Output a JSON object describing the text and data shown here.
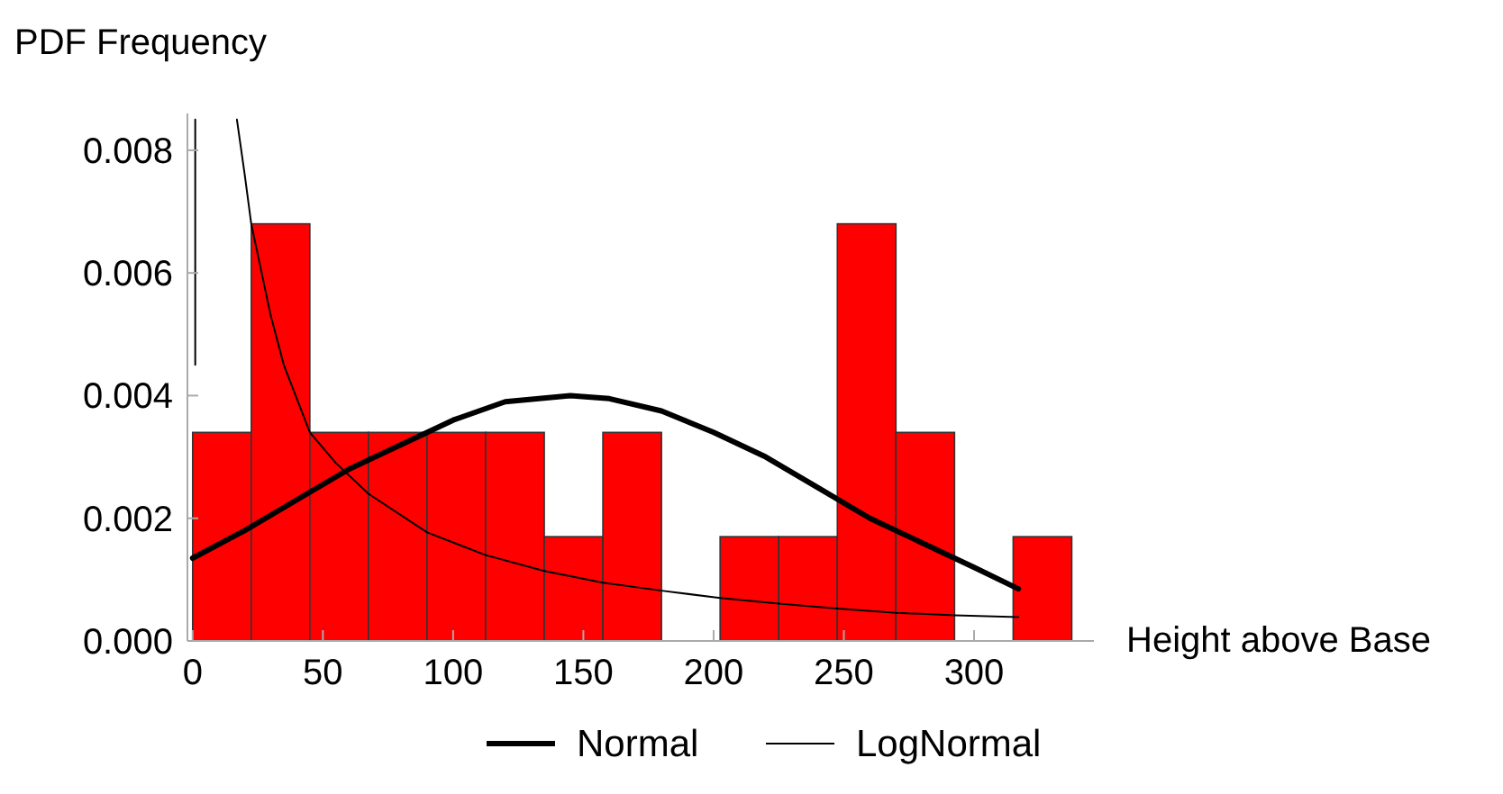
{
  "chart_data": {
    "type": "histogram",
    "xlabel": "Height above Base",
    "ylabel": "PDF Frequency",
    "color": "#ff0000",
    "bins": [
      0,
      22.5,
      45,
      67.5,
      90,
      112.5,
      135,
      157.5,
      180,
      202.5,
      225,
      247.5,
      270,
      292.5,
      315,
      337.5
    ],
    "values": [
      0.0034,
      0.0068,
      0.0034,
      0.0034,
      0.0034,
      0.0034,
      0.0017,
      0.0034,
      0,
      0.0017,
      0.0017,
      0.0068,
      0.0034,
      0,
      0.0017
    ],
    "series": [
      {
        "name": "Normal",
        "type": "line",
        "color": "#000000",
        "x": [
          0,
          20,
          40,
          60,
          80,
          100,
          120,
          145,
          160,
          180,
          200,
          220,
          240,
          260,
          280,
          300,
          317
        ],
        "values": [
          0.00135,
          0.0018,
          0.0023,
          0.0028,
          0.0032,
          0.0036,
          0.0039,
          0.004,
          0.00395,
          0.00375,
          0.0034,
          0.003,
          0.0025,
          0.002,
          0.0016,
          0.0012,
          0.00085
        ]
      },
      {
        "name": "LogNormal",
        "type": "line",
        "color": "#000000",
        "x": [
          1,
          1,
          10,
          17,
          20,
          22.5,
          30,
          35,
          45,
          55,
          67.5,
          90,
          112.5,
          135,
          157.5,
          180,
          202.5,
          225,
          247.5,
          270,
          292.5,
          317
        ],
        "values": [
          0.0045,
          0.0085,
          null,
          0.0085,
          0.0076,
          0.0068,
          0.0053,
          0.0045,
          0.0034,
          0.0029,
          0.0024,
          0.00177,
          0.0014,
          0.00114,
          0.00095,
          0.00082,
          0.0007,
          0.00061,
          0.00053,
          0.00046,
          0.00042,
          0.00039
        ]
      }
    ],
    "xlim": [
      -2,
      346
    ],
    "xticks": [
      0,
      50,
      100,
      150,
      200,
      250,
      300
    ],
    "ylim": [
      0,
      0.0086
    ],
    "yticks": [
      {
        "value": 0,
        "label": "0.000"
      },
      {
        "value": 0.002,
        "label": "0.002"
      },
      {
        "value": 0.004,
        "label": "0.004"
      },
      {
        "value": 0.006,
        "label": "0.006"
      },
      {
        "value": 0.008,
        "label": "0.008"
      }
    ],
    "legend": "bottom",
    "grid": false
  }
}
